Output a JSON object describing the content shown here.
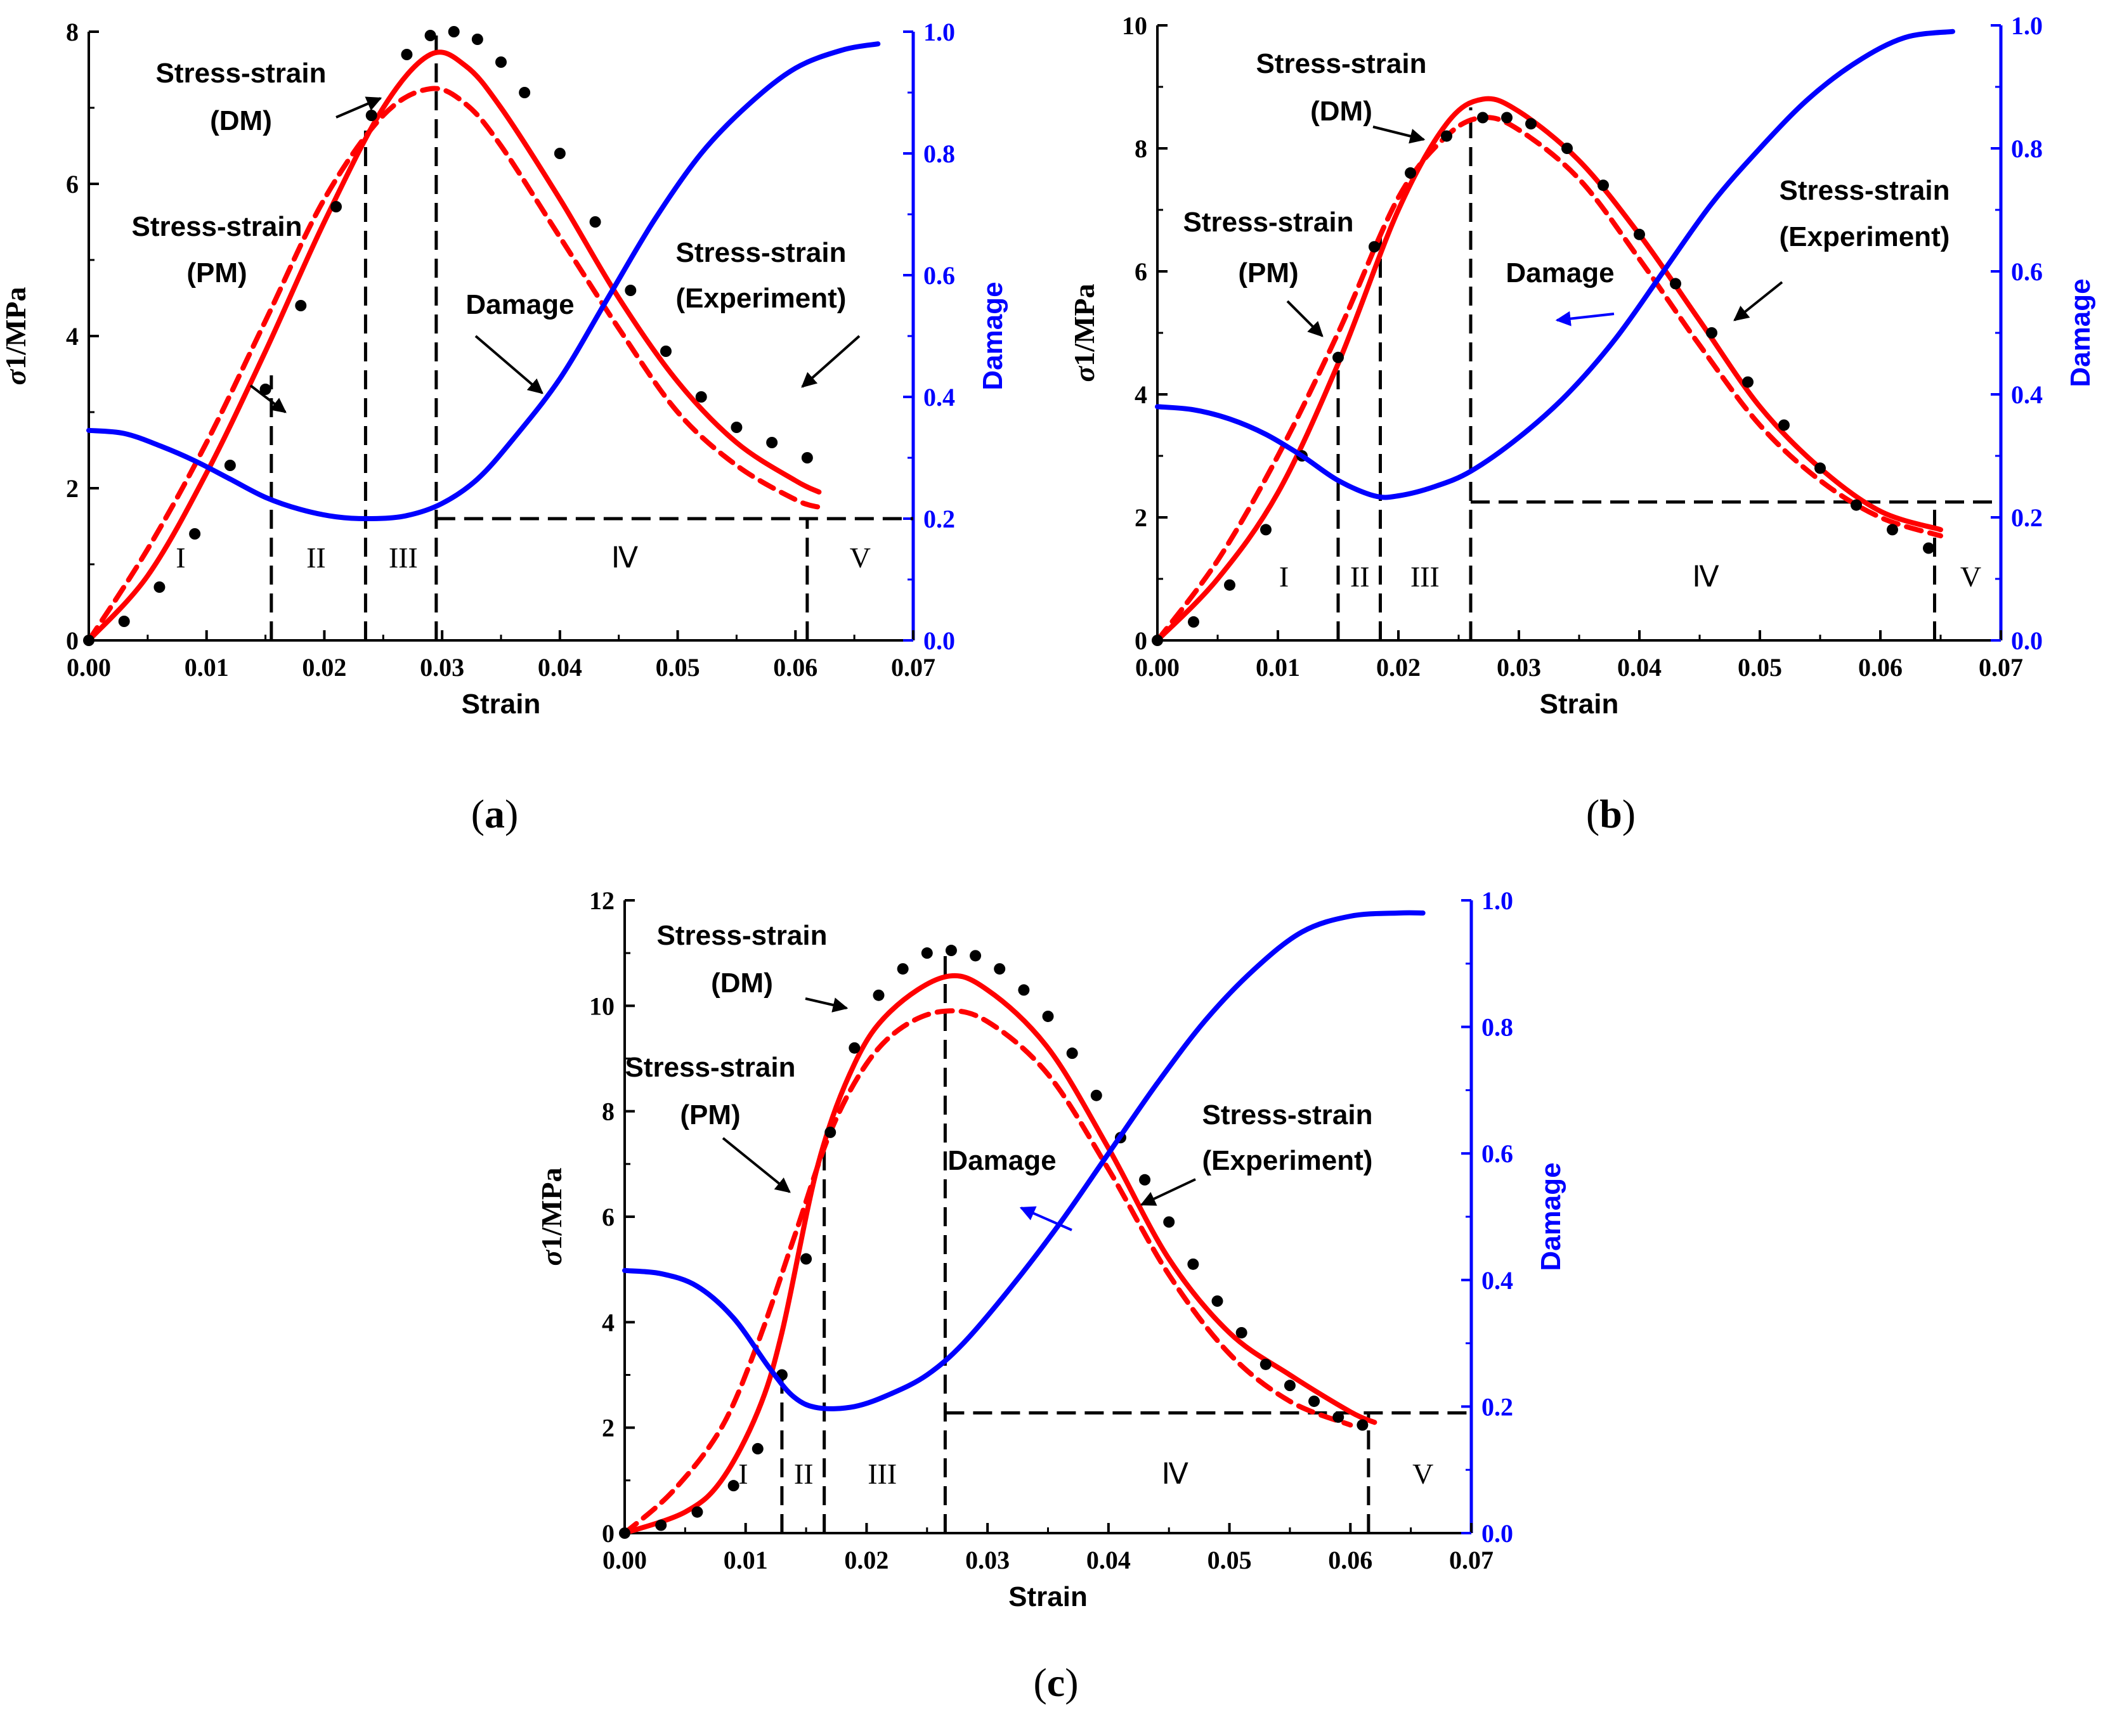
{
  "colors": {
    "axis": "#000000",
    "damage": "#0000ff",
    "stress_model": "#ff0000",
    "experiment": "#000000"
  },
  "chart_data": [
    {
      "id": "a",
      "type": "line",
      "caption": "(a)",
      "xlabel": "Strain",
      "ylabel": "σ1/MPa",
      "y2label": "Damage",
      "xlim": [
        0,
        0.07
      ],
      "ylim": [
        0,
        8
      ],
      "y2lim": [
        0,
        1.0
      ],
      "xticks": [
        "0.00",
        "0.01",
        "0.02",
        "0.03",
        "0.04",
        "0.05",
        "0.06",
        "0.07"
      ],
      "yticks": [
        "0",
        "2",
        "4",
        "6",
        "8"
      ],
      "y2ticks": [
        "0.0",
        "0.2",
        "0.4",
        "0.6",
        "0.8",
        "1.0"
      ],
      "series": [
        {
          "name": "Stress-strain (DM)",
          "style": "solid-red",
          "axis": "left",
          "x": [
            0,
            0.005,
            0.01,
            0.015,
            0.02,
            0.025,
            0.029,
            0.032,
            0.035,
            0.04,
            0.045,
            0.05,
            0.055,
            0.06,
            0.062
          ],
          "y": [
            0,
            0.85,
            2.2,
            3.8,
            5.5,
            7.0,
            7.7,
            7.55,
            7.0,
            5.8,
            4.5,
            3.4,
            2.6,
            2.1,
            1.95
          ]
        },
        {
          "name": "Stress-strain (PM)",
          "style": "dashed-red",
          "axis": "left",
          "x": [
            0,
            0.005,
            0.01,
            0.015,
            0.02,
            0.025,
            0.029,
            0.032,
            0.035,
            0.04,
            0.045,
            0.05,
            0.055,
            0.06,
            0.062
          ],
          "y": [
            0,
            1.2,
            2.6,
            4.2,
            5.8,
            6.9,
            7.25,
            7.05,
            6.5,
            5.3,
            4.1,
            3.0,
            2.3,
            1.85,
            1.75
          ]
        },
        {
          "name": "Stress-strain (Experiment)",
          "style": "dots-black",
          "axis": "left",
          "x": [
            0,
            0.003,
            0.006,
            0.009,
            0.012,
            0.015,
            0.018,
            0.021,
            0.024,
            0.027,
            0.029,
            0.031,
            0.033,
            0.035,
            0.037,
            0.04,
            0.043,
            0.046,
            0.049,
            0.052,
            0.055,
            0.058,
            0.061
          ],
          "y": [
            0,
            0.25,
            0.7,
            1.4,
            2.3,
            3.3,
            4.4,
            5.7,
            6.9,
            7.7,
            7.95,
            8.0,
            7.9,
            7.6,
            7.2,
            6.4,
            5.5,
            4.6,
            3.8,
            3.2,
            2.8,
            2.6,
            2.4
          ]
        },
        {
          "name": "Damage",
          "style": "solid-blue",
          "axis": "right",
          "x": [
            0,
            0.003,
            0.006,
            0.009,
            0.012,
            0.015,
            0.018,
            0.021,
            0.024,
            0.027,
            0.03,
            0.033,
            0.036,
            0.04,
            0.044,
            0.048,
            0.052,
            0.056,
            0.06,
            0.064,
            0.067
          ],
          "y": [
            0.345,
            0.34,
            0.32,
            0.295,
            0.265,
            0.235,
            0.215,
            0.203,
            0.2,
            0.205,
            0.225,
            0.265,
            0.33,
            0.43,
            0.56,
            0.69,
            0.8,
            0.88,
            0.94,
            0.97,
            0.98
          ]
        }
      ],
      "stage_dividers_x": [
        0.0155,
        0.0235,
        0.0295,
        0.061
      ],
      "damage_threshold": 0.2,
      "stage_labels": [
        "I",
        "II",
        "III",
        "Ⅳ",
        "V"
      ],
      "annotations": [
        "Stress-strain",
        "(DM)",
        "Stress-strain",
        "(PM)",
        "Damage",
        "Stress-strain",
        "(Experiment)"
      ]
    },
    {
      "id": "b",
      "type": "line",
      "caption": "(b)",
      "xlabel": "Strain",
      "ylabel": "σ1/MPa",
      "y2label": "Damage",
      "xlim": [
        0,
        0.07
      ],
      "ylim": [
        0,
        10
      ],
      "y2lim": [
        0,
        1.0
      ],
      "xticks": [
        "0.00",
        "0.01",
        "0.02",
        "0.03",
        "0.04",
        "0.05",
        "0.06",
        "0.07"
      ],
      "yticks": [
        "0",
        "2",
        "4",
        "6",
        "8",
        "10"
      ],
      "y2ticks": [
        "0.0",
        "0.2",
        "0.4",
        "0.6",
        "0.8",
        "1.0"
      ],
      "series": [
        {
          "name": "Stress-strain (DM)",
          "style": "solid-red",
          "axis": "left",
          "x": [
            0,
            0.005,
            0.01,
            0.015,
            0.02,
            0.024,
            0.027,
            0.03,
            0.035,
            0.04,
            0.045,
            0.05,
            0.055,
            0.06,
            0.065
          ],
          "y": [
            0,
            1.0,
            2.4,
            4.5,
            7.0,
            8.4,
            8.8,
            8.6,
            7.8,
            6.6,
            5.2,
            3.8,
            2.8,
            2.1,
            1.8
          ]
        },
        {
          "name": "Stress-strain (PM)",
          "style": "dashed-red",
          "axis": "left",
          "x": [
            0,
            0.005,
            0.01,
            0.015,
            0.02,
            0.024,
            0.027,
            0.03,
            0.035,
            0.04,
            0.045,
            0.05,
            0.055,
            0.06,
            0.065
          ],
          "y": [
            0,
            1.3,
            3.0,
            5.0,
            7.2,
            8.2,
            8.5,
            8.3,
            7.5,
            6.2,
            4.8,
            3.5,
            2.6,
            2.0,
            1.7
          ]
        },
        {
          "name": "Stress-strain (Experiment)",
          "style": "dots-black",
          "axis": "left",
          "x": [
            0,
            0.003,
            0.006,
            0.009,
            0.012,
            0.015,
            0.018,
            0.021,
            0.024,
            0.027,
            0.029,
            0.031,
            0.034,
            0.037,
            0.04,
            0.043,
            0.046,
            0.049,
            0.052,
            0.055,
            0.058,
            0.061,
            0.064
          ],
          "y": [
            0,
            0.3,
            0.9,
            1.8,
            3.0,
            4.6,
            6.4,
            7.6,
            8.2,
            8.5,
            8.5,
            8.4,
            8.0,
            7.4,
            6.6,
            5.8,
            5.0,
            4.2,
            3.5,
            2.8,
            2.2,
            1.8,
            1.5
          ]
        },
        {
          "name": "Damage",
          "style": "solid-blue",
          "axis": "right",
          "x": [
            0,
            0.003,
            0.006,
            0.009,
            0.012,
            0.015,
            0.018,
            0.02,
            0.023,
            0.026,
            0.03,
            0.034,
            0.038,
            0.042,
            0.046,
            0.05,
            0.054,
            0.058,
            0.062,
            0.066
          ],
          "y": [
            0.38,
            0.375,
            0.36,
            0.335,
            0.3,
            0.26,
            0.235,
            0.235,
            0.25,
            0.275,
            0.33,
            0.4,
            0.49,
            0.6,
            0.71,
            0.8,
            0.88,
            0.94,
            0.98,
            0.99
          ]
        }
      ],
      "stage_dividers_x": [
        0.015,
        0.0185,
        0.026,
        0.0645
      ],
      "damage_threshold": 0.225,
      "stage_labels": [
        "I",
        "II",
        "III",
        "Ⅳ",
        "V"
      ],
      "annotations": [
        "Stress-strain",
        "(DM)",
        "Stress-strain",
        "(PM)",
        "Damage",
        "Stress-strain",
        "(Experiment)"
      ]
    },
    {
      "id": "c",
      "type": "line",
      "caption": "(c)",
      "xlabel": "Strain",
      "ylabel": "σ1/MPa",
      "y2label": "Damage",
      "xlim": [
        0,
        0.07
      ],
      "ylim": [
        0,
        12
      ],
      "y2lim": [
        0,
        1.0
      ],
      "xticks": [
        "0.00",
        "0.01",
        "0.02",
        "0.03",
        "0.04",
        "0.05",
        "0.06",
        "0.07"
      ],
      "yticks": [
        "0",
        "2",
        "4",
        "6",
        "8",
        "10",
        "12"
      ],
      "y2ticks": [
        "0.0",
        "0.2",
        "0.4",
        "0.6",
        "0.8",
        "1.0"
      ],
      "series": [
        {
          "name": "Stress-strain (DM)",
          "style": "solid-red",
          "axis": "left",
          "x": [
            0,
            0.005,
            0.008,
            0.011,
            0.013,
            0.016,
            0.019,
            0.022,
            0.0265,
            0.03,
            0.035,
            0.04,
            0.045,
            0.05,
            0.055,
            0.06,
            0.062
          ],
          "y": [
            0,
            0.4,
            1.0,
            2.3,
            3.8,
            7.0,
            8.9,
            9.9,
            10.55,
            10.3,
            9.2,
            7.3,
            5.2,
            3.8,
            3.0,
            2.3,
            2.1
          ]
        },
        {
          "name": "Stress-strain (PM)",
          "style": "dashed-red",
          "axis": "left",
          "x": [
            0,
            0.004,
            0.008,
            0.011,
            0.014,
            0.017,
            0.02,
            0.023,
            0.0265,
            0.03,
            0.035,
            0.04,
            0.045,
            0.05,
            0.055,
            0.06
          ],
          "y": [
            0,
            0.8,
            2.0,
            3.6,
            5.6,
            7.6,
            8.9,
            9.6,
            9.9,
            9.7,
            8.7,
            6.9,
            4.9,
            3.4,
            2.5,
            2.05
          ]
        },
        {
          "name": "Stress-strain (Experiment)",
          "style": "dots-black",
          "axis": "left",
          "x": [
            0,
            0.003,
            0.006,
            0.009,
            0.011,
            0.013,
            0.015,
            0.017,
            0.019,
            0.021,
            0.023,
            0.025,
            0.027,
            0.029,
            0.031,
            0.033,
            0.035,
            0.037,
            0.039,
            0.041,
            0.043,
            0.045,
            0.047,
            0.049,
            0.051,
            0.053,
            0.055,
            0.057,
            0.059,
            0.061
          ],
          "y": [
            0,
            0.15,
            0.4,
            0.9,
            1.6,
            3.0,
            5.2,
            7.6,
            9.2,
            10.2,
            10.7,
            11.0,
            11.05,
            10.95,
            10.7,
            10.3,
            9.8,
            9.1,
            8.3,
            7.5,
            6.7,
            5.9,
            5.1,
            4.4,
            3.8,
            3.2,
            2.8,
            2.5,
            2.2,
            2.05
          ]
        },
        {
          "name": "Damage",
          "style": "solid-blue",
          "axis": "right",
          "x": [
            0,
            0.003,
            0.006,
            0.009,
            0.012,
            0.014,
            0.016,
            0.019,
            0.022,
            0.025,
            0.028,
            0.032,
            0.036,
            0.04,
            0.044,
            0.048,
            0.052,
            0.056,
            0.06,
            0.064,
            0.066
          ],
          "y": [
            0.415,
            0.41,
            0.39,
            0.34,
            0.26,
            0.215,
            0.198,
            0.2,
            0.22,
            0.25,
            0.3,
            0.39,
            0.49,
            0.6,
            0.71,
            0.81,
            0.89,
            0.95,
            0.975,
            0.98,
            0.98
          ]
        }
      ],
      "stage_dividers_x": [
        0.013,
        0.0165,
        0.0265,
        0.0615
      ],
      "damage_threshold": 0.19,
      "stage_labels": [
        "I",
        "II",
        "III",
        "Ⅳ",
        "V"
      ],
      "annotations": [
        "Stress-strain",
        "(DM)",
        "Stress-strain",
        "(PM)",
        "Damage",
        "Stress-strain",
        "(Experiment)"
      ]
    }
  ]
}
